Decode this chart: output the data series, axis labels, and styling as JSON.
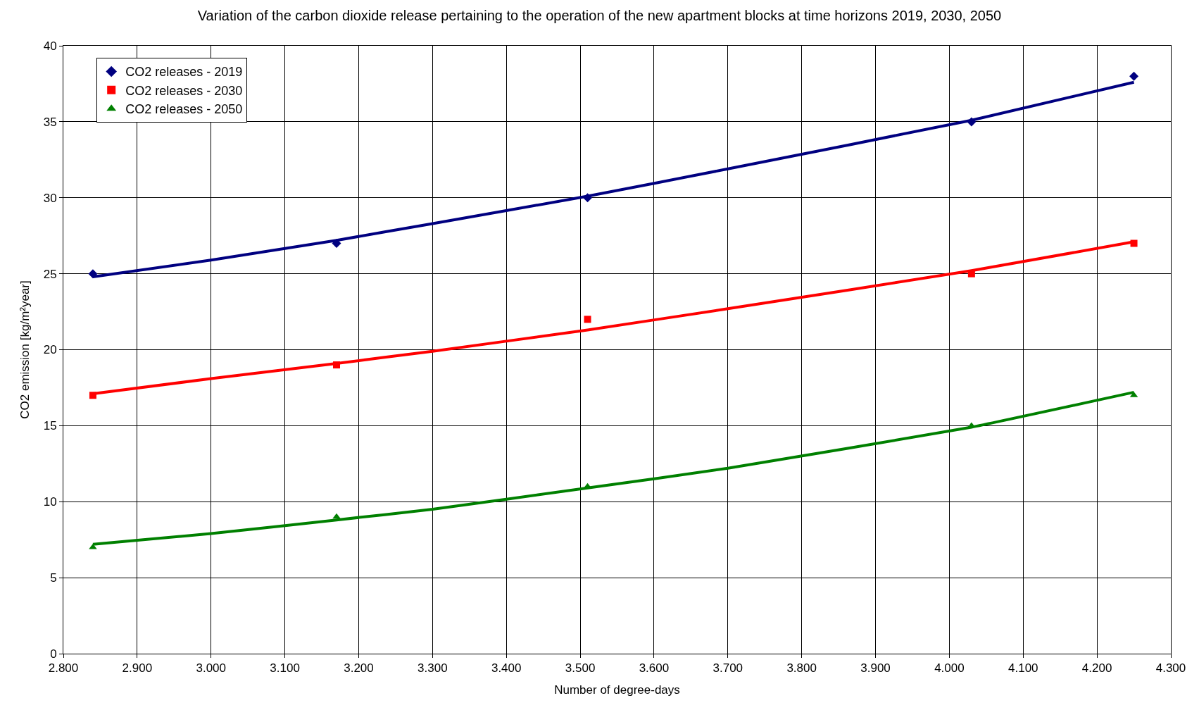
{
  "chart_data": {
    "type": "scatter",
    "title": "Variation of the carbon dioxide release pertaining to the operation of the new apartment blocks at time horizons 2019, 2030, 2050",
    "xlabel": "Number of degree-days",
    "ylabel": "CO2 emission [kg/m²year]",
    "xlim": [
      2800,
      4300
    ],
    "xticks": [
      {
        "value": 2800,
        "label": "2.800"
      },
      {
        "value": 2900,
        "label": "2.900"
      },
      {
        "value": 3000,
        "label": "3.000"
      },
      {
        "value": 3100,
        "label": "3.100"
      },
      {
        "value": 3200,
        "label": "3.200"
      },
      {
        "value": 3300,
        "label": "3.300"
      },
      {
        "value": 3400,
        "label": "3.400"
      },
      {
        "value": 3500,
        "label": "3.500"
      },
      {
        "value": 3600,
        "label": "3.600"
      },
      {
        "value": 3700,
        "label": "3.700"
      },
      {
        "value": 3800,
        "label": "3.800"
      },
      {
        "value": 3900,
        "label": "3.900"
      },
      {
        "value": 4000,
        "label": "4.000"
      },
      {
        "value": 4100,
        "label": "4.100"
      },
      {
        "value": 4200,
        "label": "4.200"
      },
      {
        "value": 4300,
        "label": "4.300"
      }
    ],
    "ylim": [
      0,
      40
    ],
    "yticks": [
      0,
      5,
      10,
      15,
      20,
      25,
      30,
      35,
      40
    ],
    "grid": true,
    "legend": "top left",
    "series": [
      {
        "type": "line",
        "color": "#000080",
        "marker": "none",
        "x": [
          2840,
          3000,
          3170,
          3300,
          3510,
          3700,
          4030,
          4250
        ],
        "values": [
          24.8,
          25.9,
          27.2,
          28.3,
          30.1,
          31.9,
          35.1,
          37.6
        ]
      },
      {
        "type": "line",
        "color": "#ff0000",
        "marker": "none",
        "x": [
          2840,
          3000,
          3170,
          3300,
          3510,
          3700,
          4030,
          4250
        ],
        "values": [
          17.1,
          18.1,
          19.1,
          19.9,
          21.3,
          22.7,
          25.2,
          27.1
        ]
      },
      {
        "type": "line",
        "color": "#008000",
        "marker": "none",
        "x": [
          2840,
          3000,
          3170,
          3300,
          3510,
          3700,
          4030,
          4250
        ],
        "values": [
          7.2,
          7.9,
          8.8,
          9.5,
          10.9,
          12.2,
          14.9,
          17.2
        ]
      },
      {
        "name": "CO2 releases - 2019",
        "color": "#000080",
        "marker": "diamond",
        "x": [
          2840,
          3170,
          3510,
          4030,
          4250
        ],
        "values": [
          25,
          27,
          30,
          35,
          38
        ]
      },
      {
        "name": "CO2 releases - 2030",
        "color": "#ff0000",
        "marker": "square",
        "x": [
          2840,
          3170,
          3510,
          4030,
          4250
        ],
        "values": [
          17,
          19,
          22,
          25,
          27
        ]
      },
      {
        "name": "CO2 releases - 2050",
        "color": "#008000",
        "marker": "triangle",
        "x": [
          2840,
          3170,
          3510,
          4030,
          4250
        ],
        "values": [
          7,
          9,
          11,
          15,
          17
        ]
      }
    ]
  }
}
